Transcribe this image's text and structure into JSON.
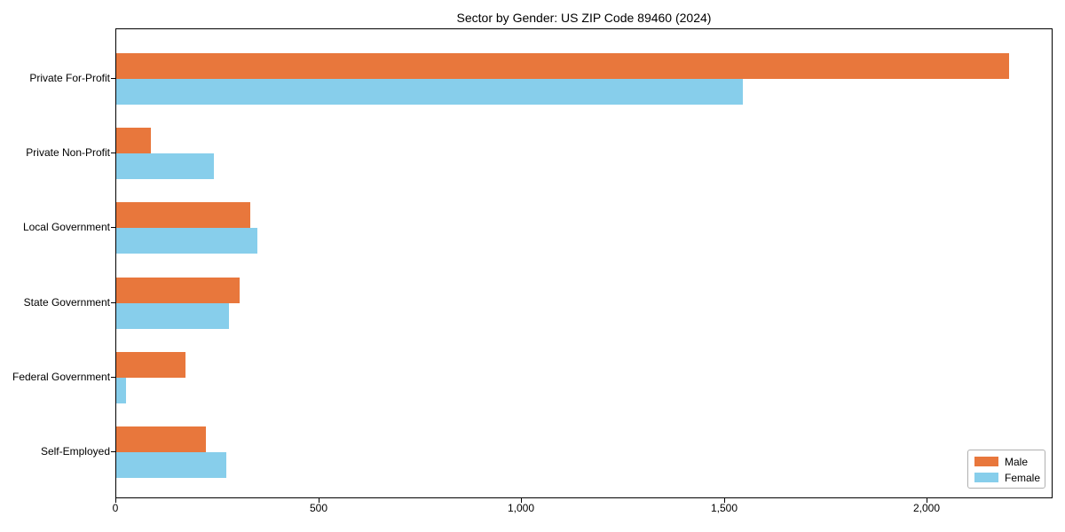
{
  "chart_data": {
    "type": "bar",
    "orientation": "horizontal",
    "title": "Sector by Gender: US ZIP Code 89460 (2024)",
    "categories": [
      "Private For-Profit",
      "Private Non-Profit",
      "Local Government",
      "State Government",
      "Federal Government",
      "Self-Employed"
    ],
    "series": [
      {
        "name": "Male",
        "color": "#e8773c",
        "values": [
          2200,
          85,
          330,
          305,
          170,
          220
        ]
      },
      {
        "name": "Female",
        "color": "#87ceeb",
        "values": [
          1545,
          240,
          348,
          278,
          25,
          272
        ]
      }
    ],
    "xlabel": "",
    "ylabel": "",
    "xlim": [
      0,
      2310
    ],
    "xticks": [
      0,
      500,
      1000,
      1500,
      2000
    ],
    "xtick_labels": [
      "0",
      "500",
      "1,000",
      "1,500",
      "2,000"
    ],
    "grid": false,
    "legend_position": "lower right",
    "colors": {
      "male": "#e8773c",
      "female": "#87ceeb",
      "axis": "#000000",
      "legend_border": "#b0b0b0",
      "background": "#ffffff"
    }
  }
}
